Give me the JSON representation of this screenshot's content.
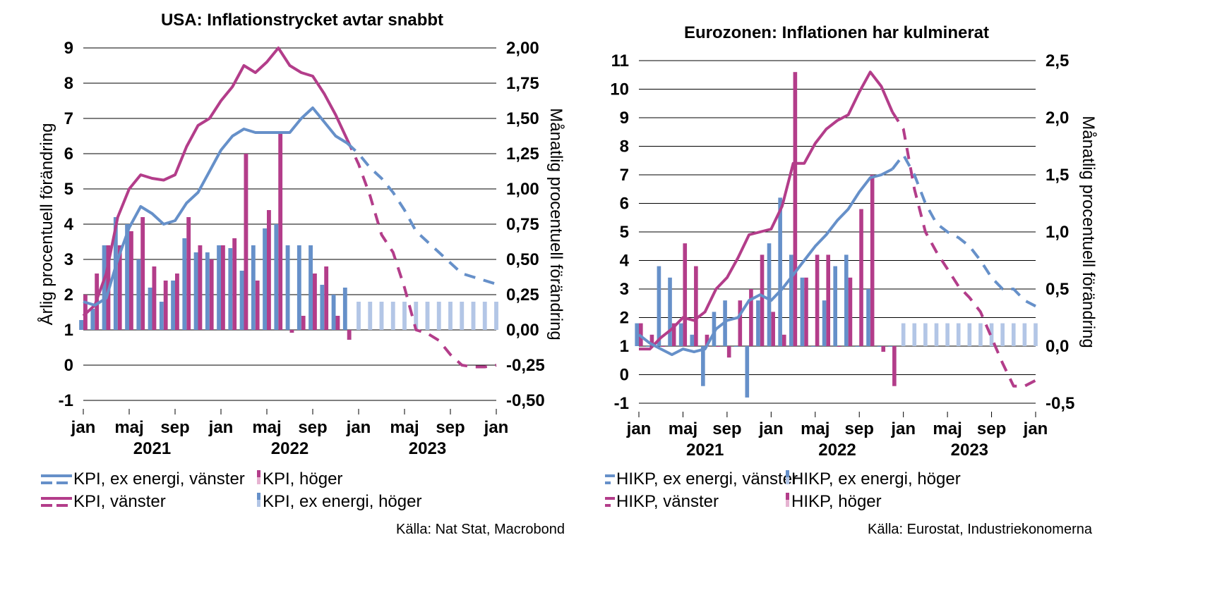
{
  "colors": {
    "cpi": "#b33d8a",
    "core": "#6690c9",
    "cpi_forecast_bar": "#e6b3d1",
    "core_forecast_bar": "#b3c6e6",
    "grid": "#000000"
  },
  "chart_data": [
    {
      "type": "bar",
      "title": "USA: Inflationstrycket avtar snabbt",
      "ylabel": "Årlig procentuell förändring",
      "y2label": "Månatlig procentuell förändring",
      "ylim": [
        -1,
        9
      ],
      "y2lim": [
        -0.5,
        2.0
      ],
      "yticks": [
        "-1",
        "0",
        "1",
        "2",
        "3",
        "4",
        "5",
        "6",
        "7",
        "8",
        "9"
      ],
      "y2ticks": [
        "-0,50",
        "-0,25",
        "0,00",
        "0,25",
        "0,50",
        "0,75",
        "1,00",
        "1,25",
        "1,50",
        "1,75",
        "2,00"
      ],
      "xticks": [
        "jan",
        "maj",
        "sep",
        "jan",
        "maj",
        "sep",
        "jan",
        "maj",
        "sep",
        "jan"
      ],
      "years": [
        "2021",
        "2022",
        "2023"
      ],
      "x_months": "months from jan 2021 (0) to jan 2024 (36)",
      "source": "Källa: Nat Stat, Macrobond",
      "series": [
        {
          "name": "KPI, vänster",
          "kind": "line",
          "axis": "left",
          "x": [
            0,
            1,
            2,
            3,
            4,
            5,
            6,
            7,
            8,
            9,
            10,
            11,
            12,
            13,
            14,
            15,
            16,
            17,
            18,
            19,
            20,
            21,
            22,
            23
          ],
          "values": [
            1.4,
            1.7,
            2.6,
            4.2,
            5.0,
            5.4,
            5.3,
            5.25,
            5.4,
            6.2,
            6.8,
            7.0,
            7.5,
            7.9,
            8.5,
            8.3,
            8.6,
            9.0,
            8.5,
            8.3,
            8.2,
            7.7,
            7.1,
            6.4
          ]
        },
        {
          "name": "KPI, vänster (prognos)",
          "kind": "line_dashed",
          "axis": "left",
          "x": [
            23,
            24,
            25,
            26,
            27,
            28,
            29,
            30,
            31,
            32,
            33,
            34,
            35,
            36
          ],
          "values": [
            6.4,
            5.7,
            4.8,
            3.7,
            3.2,
            2.2,
            1.0,
            0.9,
            0.7,
            0.3,
            0.0,
            -0.05,
            -0.05,
            0.0
          ]
        },
        {
          "name": "KPI, ex energi, vänster",
          "kind": "line",
          "axis": "left",
          "x": [
            0,
            1,
            2,
            3,
            4,
            5,
            6,
            7,
            8,
            9,
            10,
            11,
            12,
            13,
            14,
            15,
            16,
            17,
            18,
            19,
            20,
            21,
            22,
            23
          ],
          "values": [
            1.8,
            1.7,
            1.9,
            3.0,
            3.9,
            4.5,
            4.3,
            4.0,
            4.1,
            4.6,
            4.9,
            5.5,
            6.1,
            6.5,
            6.7,
            6.6,
            6.6,
            6.6,
            6.6,
            7.0,
            7.3,
            6.9,
            6.5,
            6.3
          ]
        },
        {
          "name": "KPI, ex energi, vänster (prognos)",
          "kind": "line_dashed",
          "axis": "left",
          "x": [
            23,
            24,
            25,
            26,
            27,
            28,
            29,
            30,
            31,
            32,
            33,
            34,
            35,
            36
          ],
          "values": [
            6.3,
            6.0,
            5.6,
            5.3,
            4.9,
            4.4,
            3.8,
            3.5,
            3.2,
            2.9,
            2.6,
            2.5,
            2.4,
            2.3
          ]
        },
        {
          "name": "KPI, höger",
          "kind": "bar",
          "axis": "right",
          "x": [
            0,
            1,
            2,
            3,
            4,
            5,
            6,
            7,
            8,
            9,
            10,
            11,
            12,
            13,
            14,
            15,
            16,
            17,
            18,
            19,
            20,
            21,
            22,
            23
          ],
          "values": [
            0.25,
            0.4,
            0.6,
            0.6,
            0.7,
            0.8,
            0.45,
            0.35,
            0.4,
            0.8,
            0.6,
            0.5,
            0.6,
            0.65,
            1.25,
            0.35,
            0.85,
            1.4,
            -0.02,
            0.1,
            0.4,
            0.45,
            0.1,
            -0.07
          ]
        },
        {
          "name": "KPI, ex energi, höger",
          "kind": "bar",
          "axis": "right",
          "x": [
            0,
            1,
            2,
            3,
            4,
            5,
            6,
            7,
            8,
            9,
            10,
            11,
            12,
            13,
            14,
            15,
            16,
            17,
            18,
            19,
            20,
            21,
            22,
            23
          ],
          "values": [
            0.07,
            0.15,
            0.6,
            0.8,
            0.75,
            0.5,
            0.3,
            0.2,
            0.35,
            0.65,
            0.55,
            0.55,
            0.6,
            0.58,
            0.42,
            0.6,
            0.72,
            0.75,
            0.6,
            0.6,
            0.6,
            0.32,
            0.25,
            0.3
          ]
        },
        {
          "name": "KPI, ex energi, höger (prognos)",
          "kind": "bar_forecast",
          "axis": "right",
          "x": [
            24,
            25,
            26,
            27,
            28,
            29,
            30,
            31,
            32,
            33,
            34,
            35,
            36
          ],
          "values": [
            0.2,
            0.2,
            0.2,
            0.2,
            0.2,
            0.2,
            0.2,
            0.2,
            0.2,
            0.2,
            0.2,
            0.2,
            0.2
          ]
        }
      ],
      "legend": [
        {
          "label": "KPI, ex energi, vänster",
          "kind": "line",
          "color": "core"
        },
        {
          "label": "KPI, höger",
          "kind": "bar",
          "color": "cpi"
        },
        {
          "label": "KPI, vänster",
          "kind": "line",
          "color": "cpi"
        },
        {
          "label": "KPI, ex energi, höger",
          "kind": "bar",
          "color": "core"
        }
      ]
    },
    {
      "type": "bar",
      "title": "Eurozonen: Inflationen har kulminerat",
      "ylabel": "Årlig procentuell förändring",
      "y2label": "Månatlig procentuell förändring",
      "ylim": [
        -1,
        11
      ],
      "y2lim": [
        -0.5,
        2.5
      ],
      "yticks": [
        "-1",
        "0",
        "1",
        "2",
        "3",
        "4",
        "5",
        "6",
        "7",
        "8",
        "9",
        "10",
        "11"
      ],
      "y2ticks": [
        "-0,5",
        "0,0",
        "0,5",
        "1,0",
        "1,5",
        "2,0",
        "2,5"
      ],
      "xticks": [
        "jan",
        "maj",
        "sep",
        "jan",
        "maj",
        "sep",
        "jan",
        "maj",
        "sep",
        "jan"
      ],
      "years": [
        "2021",
        "2022",
        "2023"
      ],
      "x_months": "months from jan 2021 (0) to jan 2024 (36)",
      "source": "Källa: Eurostat, Industriekonomerna",
      "series": [
        {
          "name": "HIKP, vänster",
          "kind": "line",
          "axis": "left",
          "x": [
            0,
            1,
            2,
            3,
            4,
            5,
            6,
            7,
            8,
            9,
            10,
            11,
            12,
            13,
            14,
            15,
            16,
            17,
            18,
            19,
            20,
            21,
            22,
            23
          ],
          "values": [
            0.9,
            0.9,
            1.3,
            1.6,
            2.0,
            1.9,
            2.2,
            3.0,
            3.4,
            4.1,
            4.9,
            5.0,
            5.1,
            5.9,
            7.4,
            7.4,
            8.1,
            8.6,
            8.9,
            9.1,
            9.9,
            10.6,
            10.1,
            9.2
          ]
        },
        {
          "name": "HIKP, vänster (prognos)",
          "kind": "line_dashed",
          "axis": "left",
          "x": [
            23,
            24,
            25,
            26,
            27,
            28,
            29,
            30,
            31,
            32,
            33,
            34,
            35,
            36
          ],
          "values": [
            9.2,
            8.6,
            6.5,
            5.0,
            4.3,
            3.7,
            3.1,
            2.7,
            2.2,
            1.3,
            0.4,
            -0.4,
            -0.4,
            -0.2
          ]
        },
        {
          "name": "HIKP, ex energi, vänster",
          "kind": "line",
          "axis": "left",
          "x": [
            0,
            1,
            2,
            3,
            4,
            5,
            6,
            7,
            8,
            9,
            10,
            11,
            12,
            13,
            14,
            15,
            16,
            17,
            18,
            19,
            20,
            21,
            22,
            23
          ],
          "values": [
            1.4,
            1.1,
            0.9,
            0.7,
            0.9,
            0.8,
            0.9,
            1.6,
            1.9,
            2.0,
            2.6,
            2.8,
            2.6,
            3.0,
            3.5,
            4.0,
            4.5,
            4.9,
            5.4,
            5.8,
            6.4,
            6.9,
            7.0,
            7.2
          ]
        },
        {
          "name": "HIKP, ex energi, vänster (prognos)",
          "kind": "line_dashed",
          "axis": "left",
          "x": [
            23,
            24,
            25,
            26,
            27,
            28,
            29,
            30,
            31,
            32,
            33,
            34,
            35,
            36
          ],
          "values": [
            7.2,
            7.7,
            7.0,
            6.0,
            5.3,
            5.0,
            4.8,
            4.5,
            4.0,
            3.4,
            3.0,
            3.0,
            2.6,
            2.4
          ]
        },
        {
          "name": "HIKP, höger",
          "kind": "bar",
          "axis": "right",
          "x": [
            0,
            1,
            2,
            3,
            4,
            5,
            6,
            7,
            8,
            9,
            10,
            11,
            12,
            13,
            14,
            15,
            16,
            17,
            18,
            19,
            20,
            21,
            22,
            23
          ],
          "values": [
            0.2,
            0.1,
            0.0,
            0.2,
            0.9,
            0.7,
            0.1,
            0.0,
            -0.1,
            0.4,
            0.5,
            0.8,
            0.3,
            0.1,
            2.4,
            0.6,
            0.8,
            0.8,
            0.0,
            0.6,
            1.2,
            1.5,
            -0.05,
            -0.35
          ]
        },
        {
          "name": "HIKP, ex energi, höger",
          "kind": "bar",
          "axis": "right",
          "x": [
            0,
            1,
            2,
            3,
            4,
            5,
            6,
            7,
            8,
            9,
            10,
            11,
            12,
            13,
            14,
            15,
            16,
            17,
            18,
            19,
            20,
            21,
            22,
            23
          ],
          "values": [
            0.2,
            0.0,
            0.7,
            0.6,
            0.2,
            0.1,
            -0.35,
            0.3,
            0.4,
            0.0,
            -0.45,
            0.4,
            0.9,
            1.3,
            0.8,
            0.6,
            0.0,
            0.4,
            0.7,
            0.8,
            0.0,
            0.5,
            0.0,
            0.0
          ]
        },
        {
          "name": "HIKP, ex energi, höger (prognos)",
          "kind": "bar_forecast",
          "axis": "right",
          "x": [
            24,
            25,
            26,
            27,
            28,
            29,
            30,
            31,
            32,
            33,
            34,
            35,
            36
          ],
          "values": [
            0.2,
            0.2,
            0.2,
            0.2,
            0.2,
            0.2,
            0.2,
            0.2,
            0.2,
            0.2,
            0.2,
            0.2,
            0.2
          ]
        }
      ],
      "legend": [
        {
          "label": "HIKP, ex energi, vänster",
          "kind": "line",
          "color": "core"
        },
        {
          "label": "HIKP, ex energi, höger",
          "kind": "bar",
          "color": "core"
        },
        {
          "label": "HIKP, vänster",
          "kind": "line",
          "color": "cpi"
        },
        {
          "label": "HIKP, höger",
          "kind": "bar",
          "color": "cpi"
        }
      ]
    }
  ]
}
